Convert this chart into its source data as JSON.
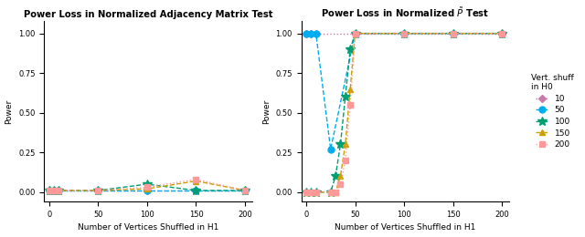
{
  "left_title": "Power Loss in Normalized Adjacency Matrix Test",
  "right_title": "Power Loss in Normalized $\\tilde{P}$ Test",
  "xlabel": "Number of Vertices Shuffled in H1",
  "ylabel": "Power",
  "legend_title": "Vert. shuff\nin H0",
  "x_ticks": [
    0,
    50,
    100,
    150,
    200
  ],
  "y_ticks": [
    0.0,
    0.25,
    0.5,
    0.75,
    1.0
  ],
  "left_data": {
    "10": {
      "x": [
        0,
        5,
        10,
        50,
        100,
        150,
        200
      ],
      "y": [
        0.01,
        0.01,
        0.01,
        0.01,
        0.01,
        0.01,
        0.01
      ]
    },
    "50": {
      "x": [
        0,
        5,
        10,
        50,
        100,
        150,
        200
      ],
      "y": [
        0.01,
        0.01,
        0.01,
        0.01,
        0.01,
        0.01,
        0.01
      ]
    },
    "100": {
      "x": [
        0,
        5,
        10,
        50,
        100,
        150,
        200
      ],
      "y": [
        0.01,
        0.01,
        0.01,
        0.01,
        0.05,
        0.01,
        0.01
      ]
    },
    "150": {
      "x": [
        0,
        5,
        10,
        50,
        100,
        150,
        200
      ],
      "y": [
        0.01,
        0.01,
        0.01,
        0.01,
        0.02,
        0.07,
        0.01
      ]
    },
    "200": {
      "x": [
        0,
        5,
        10,
        50,
        100,
        150,
        200
      ],
      "y": [
        0.01,
        0.01,
        0.01,
        0.01,
        0.03,
        0.08,
        0.01
      ]
    }
  },
  "right_data": {
    "10": {
      "x": [
        0,
        5,
        10,
        50,
        100,
        150,
        200
      ],
      "y": [
        1.0,
        1.0,
        1.0,
        1.0,
        1.0,
        1.0,
        1.0
      ]
    },
    "50": {
      "x": [
        0,
        5,
        10,
        25,
        50,
        100,
        150,
        200
      ],
      "y": [
        1.0,
        1.0,
        1.0,
        0.27,
        1.0,
        1.0,
        1.0,
        1.0
      ]
    },
    "100": {
      "x": [
        0,
        5,
        10,
        25,
        30,
        35,
        40,
        45,
        50,
        100,
        150,
        200
      ],
      "y": [
        0.0,
        0.0,
        0.0,
        0.0,
        0.1,
        0.3,
        0.6,
        0.9,
        1.0,
        1.0,
        1.0,
        1.0
      ]
    },
    "150": {
      "x": [
        0,
        5,
        10,
        25,
        30,
        35,
        40,
        45,
        50,
        100,
        150,
        200
      ],
      "y": [
        0.0,
        0.0,
        0.0,
        0.0,
        0.0,
        0.1,
        0.3,
        0.65,
        1.0,
        1.0,
        1.0,
        1.0
      ]
    },
    "200": {
      "x": [
        0,
        5,
        10,
        25,
        30,
        35,
        40,
        45,
        50,
        100,
        150,
        200
      ],
      "y": [
        0.0,
        0.0,
        0.0,
        0.0,
        0.0,
        0.05,
        0.2,
        0.55,
        1.0,
        1.0,
        1.0,
        1.0
      ]
    }
  },
  "series_styles": {
    "10": {
      "color": "#CC79A7",
      "marker": "D",
      "linestyle": "dotted",
      "ms": 4
    },
    "50": {
      "color": "#00AEEF",
      "marker": "o",
      "linestyle": "dashed",
      "ms": 5
    },
    "100": {
      "color": "#009E73",
      "marker": "*",
      "linestyle": "dashed",
      "ms": 7
    },
    "150": {
      "color": "#C8A000",
      "marker": "^",
      "linestyle": "dashed",
      "ms": 5
    },
    "200": {
      "color": "#FF9999",
      "marker": "s",
      "linestyle": "dotted",
      "ms": 4
    }
  }
}
